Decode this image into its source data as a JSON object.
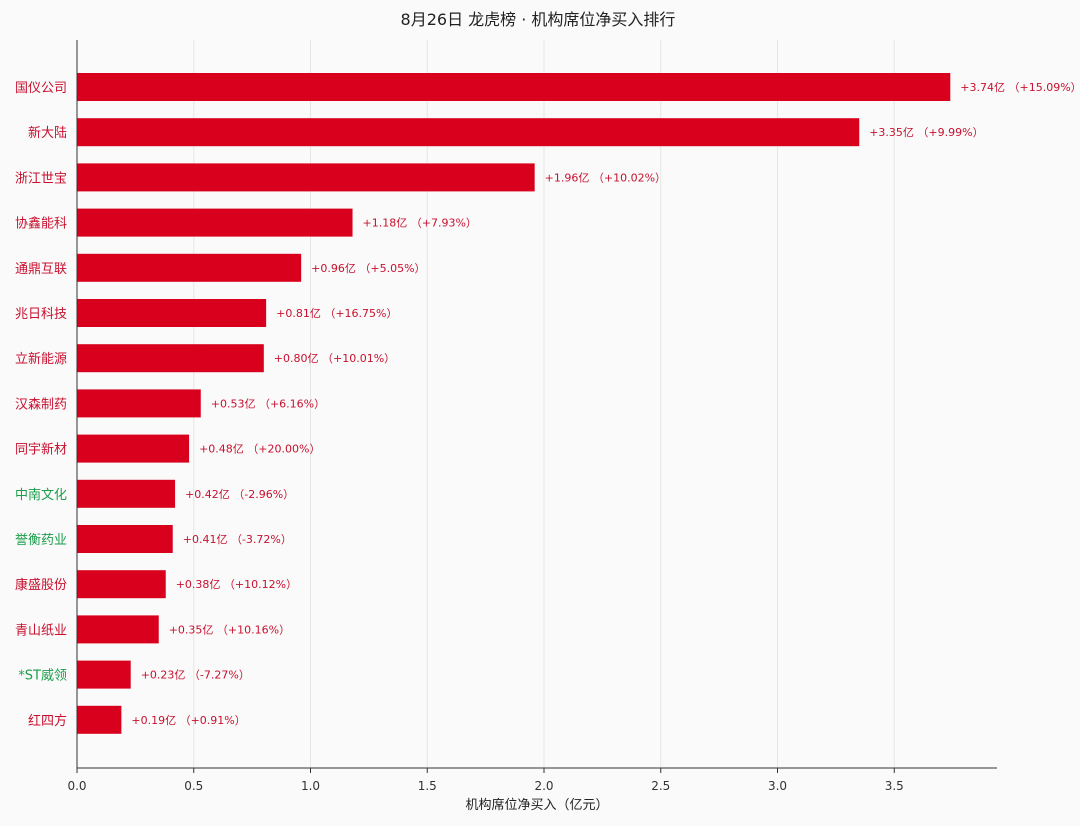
{
  "chart_data": {
    "type": "bar",
    "orientation": "horizontal",
    "title": "8月26日  龙虎榜 · 机构席位净买入排行",
    "xlabel": "机构席位净买入（亿元）",
    "xlim": [
      0,
      3.94
    ],
    "xticks": [
      "0.0",
      "0.5",
      "1.0",
      "1.5",
      "2.0",
      "2.5",
      "3.0",
      "3.5"
    ],
    "xtick_values": [
      0,
      0.5,
      1.0,
      1.5,
      2.0,
      2.5,
      3.0,
      3.5
    ],
    "grid": "vertical",
    "categories": [
      "国仪公司",
      "新大陆",
      "浙江世宝",
      "协鑫能科",
      "通鼎互联",
      "兆日科技",
      "立新能源",
      "汉森制药",
      "同宇新材",
      "中南文化",
      "誉衡药业",
      "康盛股份",
      "青山纸业",
      "*ST威领",
      "红四方"
    ],
    "values": [
      3.74,
      3.35,
      1.96,
      1.18,
      0.96,
      0.81,
      0.8,
      0.53,
      0.48,
      0.42,
      0.41,
      0.38,
      0.35,
      0.23,
      0.19
    ],
    "data_labels": [
      "+3.74亿 （+15.09%）",
      "+3.35亿 （+9.99%）",
      "+1.96亿 （+10.02%）",
      "+1.18亿 （+7.93%）",
      "+0.96亿 （+5.05%）",
      "+0.81亿 （+16.75%）",
      "+0.80亿 （+10.01%）",
      "+0.53亿 （+6.16%）",
      "+0.48亿 （+20.00%）",
      "+0.42亿 （-2.96%）",
      "+0.41亿 （-3.72%）",
      "+0.38亿 （+10.12%）",
      "+0.35亿 （+10.16%）",
      "+0.23亿 （-7.27%）",
      "+0.19亿 （+0.91%）"
    ],
    "price_change_pct": [
      15.09,
      9.99,
      10.02,
      7.93,
      5.05,
      16.75,
      10.01,
      6.16,
      20.0,
      -2.96,
      -3.72,
      10.12,
      10.16,
      -7.27,
      0.91
    ],
    "colors": {
      "bar": "#d8001c",
      "label_up": "#c8102e",
      "label_down": "#1a9e4a",
      "axis": "#333333",
      "grid": "#e6e6e6",
      "title": "#222222"
    }
  }
}
